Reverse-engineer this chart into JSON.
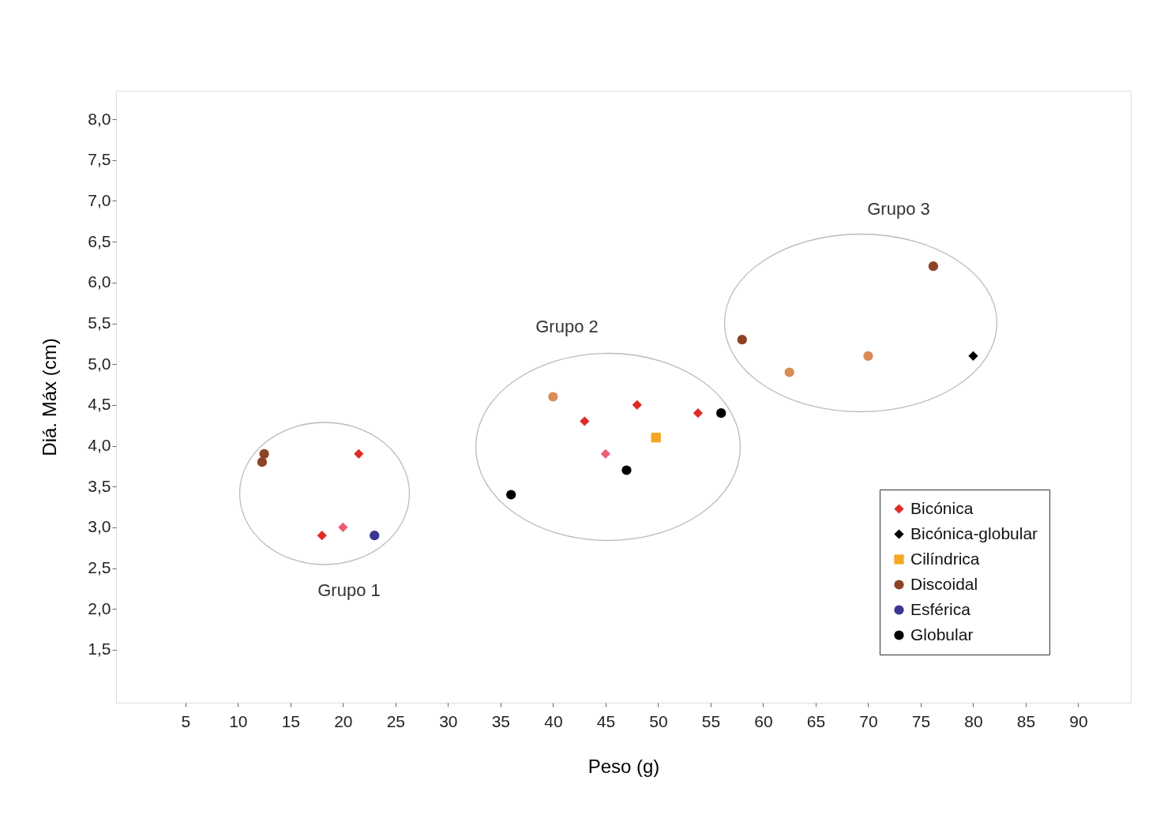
{
  "chart_data": {
    "type": "scatter",
    "xlabel": "Peso (g)",
    "ylabel": "Diá. Máx (cm)",
    "xlim": [
      -1.6,
      95
    ],
    "ylim": [
      0.85,
      8.35
    ],
    "xticks": [
      5,
      10,
      15,
      20,
      25,
      30,
      35,
      40,
      45,
      50,
      55,
      60,
      65,
      70,
      75,
      80,
      85,
      90
    ],
    "yticks": [
      {
        "value": 1.5,
        "label": "1,5"
      },
      {
        "value": 2.0,
        "label": "2,0"
      },
      {
        "value": 2.5,
        "label": "2,5"
      },
      {
        "value": 3.0,
        "label": "3,0"
      },
      {
        "value": 3.5,
        "label": "3,5"
      },
      {
        "value": 4.0,
        "label": "4,0"
      },
      {
        "value": 4.5,
        "label": "4,5"
      },
      {
        "value": 5.0,
        "label": "5,0"
      },
      {
        "value": 5.5,
        "label": "5,5"
      },
      {
        "value": 6.0,
        "label": "6,0"
      },
      {
        "value": 6.5,
        "label": "6,5"
      },
      {
        "value": 7.0,
        "label": "7,0"
      },
      {
        "value": 7.5,
        "label": "7,5"
      },
      {
        "value": 8.0,
        "label": "8,0"
      }
    ],
    "grid": false,
    "legend": "bottom right",
    "series": [
      {
        "name": "Bicónica",
        "color": "#dd2c26",
        "marker": "diamond",
        "x": [
          18,
          21.5,
          43,
          48,
          53.8
        ],
        "values": [
          2.9,
          3.9,
          4.3,
          4.5,
          4.4
        ]
      },
      {
        "name": "Bicónica-globular",
        "color": "#000000",
        "marker": "diamond",
        "x": [
          80
        ],
        "values": [
          5.1
        ]
      },
      {
        "name": "Cilíndrica",
        "color": "#f5a623",
        "marker": "square",
        "x": [
          49.8
        ],
        "values": [
          4.1
        ]
      },
      {
        "name": "Discoidal",
        "color": "#8b4426",
        "marker": "circle",
        "x": [
          12.5,
          12.3,
          58,
          76.2
        ],
        "values": [
          3.9,
          3.8,
          5.3,
          6.2
        ]
      },
      {
        "name": "Esférica",
        "color": "#3a3494",
        "marker": "circle",
        "x": [
          23
        ],
        "values": [
          2.9
        ]
      },
      {
        "name": "Globular",
        "color": "#000000",
        "marker": "circle",
        "x": [
          36,
          47,
          56
        ],
        "values": [
          3.4,
          3.7,
          4.4
        ]
      },
      {
        "color": "#ec5d74",
        "marker": "diamond",
        "x": [
          20,
          45
        ],
        "values": [
          3.0,
          3.9
        ]
      },
      {
        "color": "#d98c55",
        "marker": "circle",
        "x": [
          40,
          62.5,
          70
        ],
        "values": [
          4.6,
          4.9,
          5.1
        ]
      }
    ],
    "annotations": [
      "Grupo 1",
      "Grupo 2",
      "Grupo 3"
    ]
  }
}
